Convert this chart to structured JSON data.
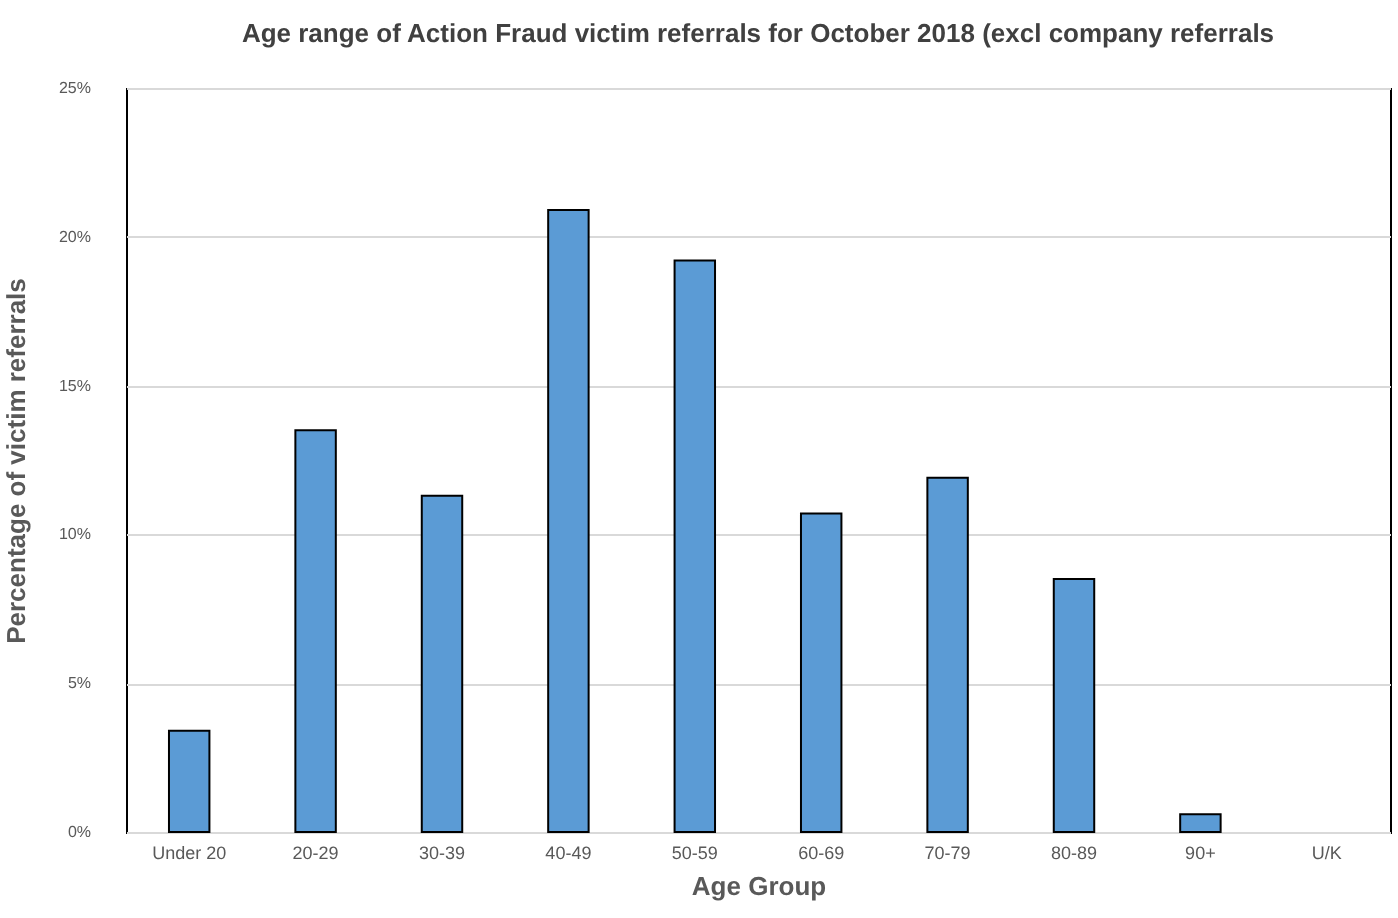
{
  "chart_data": {
    "type": "bar",
    "title": "Age range of Action Fraud victim referrals for October 2018 (excl company referrals",
    "xlabel": "Age Group",
    "ylabel": "Percentage of victim referrals",
    "categories": [
      "Under 20",
      "20-29",
      "30-39",
      "40-49",
      "50-59",
      "60-69",
      "70-79",
      "80-89",
      "90+",
      "U/K"
    ],
    "series": [
      {
        "color": "#5b9bd5",
        "values": [
          3.4,
          13.5,
          11.3,
          20.9,
          19.2,
          10.7,
          11.9,
          8.5,
          0.6,
          null
        ]
      }
    ],
    "ylim": [
      0,
      25
    ],
    "yticks": [
      {
        "value": 0,
        "label": "0%"
      },
      {
        "value": 5,
        "label": "5%"
      },
      {
        "value": 10,
        "label": "10%"
      },
      {
        "value": 15,
        "label": "15%"
      },
      {
        "value": 20,
        "label": "20%"
      },
      {
        "value": 25,
        "label": "25%"
      }
    ],
    "grid": "y"
  }
}
